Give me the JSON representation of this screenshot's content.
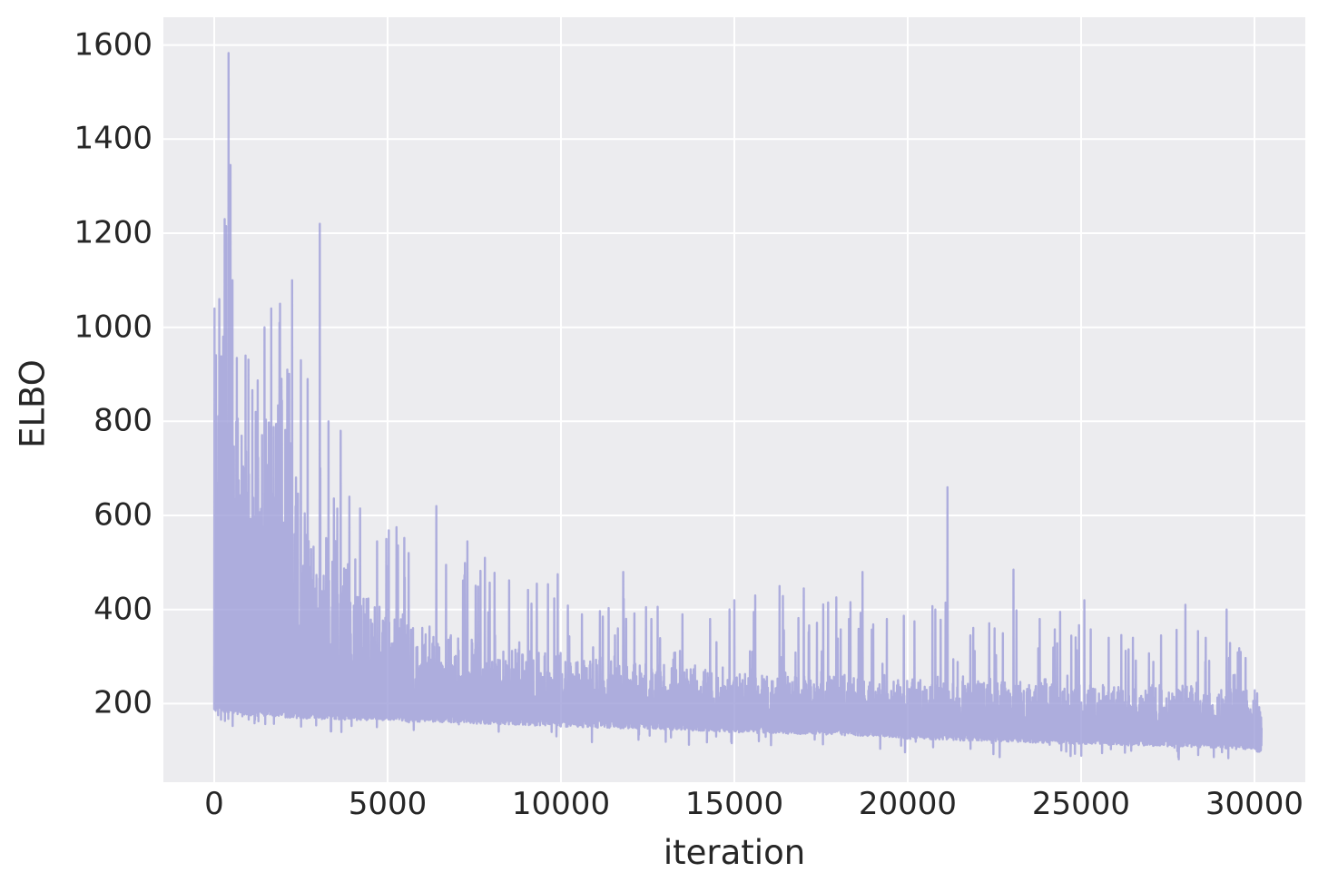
{
  "chart_data": {
    "type": "line",
    "title": "",
    "xlabel": "iteration",
    "ylabel": "ELBO",
    "legend": false,
    "grid": true,
    "x_ticks": [
      0,
      5000,
      10000,
      15000,
      20000,
      25000,
      30000
    ],
    "y_ticks": [
      200,
      400,
      600,
      800,
      1000,
      1200,
      1400,
      1600
    ],
    "xlim": [
      -1466,
      31466
    ],
    "ylim": [
      33,
      1659
    ],
    "x_start": 0,
    "x_end": 30200,
    "sample_step": 14,
    "noise_seed": 20240613,
    "style": {
      "figure_background": "#ffffff",
      "axes_background": "#ececef",
      "grid_color": "#ffffff",
      "line_color": "#9e9ed8",
      "line_opacity": 0.8,
      "line_width": 2.4,
      "text_color": "#262626"
    },
    "description": "Noisy stochastic-optimization ELBO trace: values oscillate in a dense band whose lower edge decays from ~195 at iteration 0 to ~110 at iteration 30000, with a spike envelope decaying from ~1050 (max spike 1583 near iteration 410) to ~300-450 late in training.",
    "envelope_points_format": [
      "iteration",
      "band_low",
      "band_top",
      "spike_max"
    ],
    "envelope_points": [
      [
        0,
        195,
        1000,
        1150
      ],
      [
        300,
        192,
        980,
        1250
      ],
      [
        700,
        188,
        830,
        1000
      ],
      [
        1000,
        186,
        720,
        950
      ],
      [
        1400,
        184,
        800,
        1000
      ],
      [
        2000,
        182,
        840,
        1060
      ],
      [
        2400,
        180,
        690,
        900
      ],
      [
        2800,
        179,
        520,
        720
      ],
      [
        3200,
        178,
        545,
        780
      ],
      [
        3700,
        177,
        490,
        680
      ],
      [
        4200,
        176,
        430,
        620
      ],
      [
        5000,
        174,
        385,
        580
      ],
      [
        6000,
        172,
        350,
        560
      ],
      [
        7000,
        170,
        330,
        520
      ],
      [
        8000,
        167,
        310,
        480
      ],
      [
        9000,
        165,
        300,
        470
      ],
      [
        10000,
        162,
        290,
        460
      ],
      [
        11000,
        160,
        282,
        420
      ],
      [
        12000,
        158,
        275,
        440
      ],
      [
        13000,
        156,
        266,
        400
      ],
      [
        14000,
        153,
        260,
        400
      ],
      [
        15000,
        150,
        256,
        410
      ],
      [
        16000,
        148,
        254,
        430
      ],
      [
        17000,
        146,
        250,
        430
      ],
      [
        18000,
        144,
        248,
        440
      ],
      [
        19000,
        142,
        246,
        390
      ],
      [
        20000,
        136,
        242,
        390
      ],
      [
        21000,
        134,
        240,
        420
      ],
      [
        22000,
        131,
        238,
        360
      ],
      [
        23000,
        129,
        236,
        420
      ],
      [
        24000,
        127,
        234,
        380
      ],
      [
        25000,
        125,
        232,
        400
      ],
      [
        26000,
        123,
        230,
        350
      ],
      [
        27000,
        121,
        228,
        340
      ],
      [
        28000,
        119,
        226,
        380
      ],
      [
        29000,
        116,
        224,
        380
      ],
      [
        29800,
        113,
        222,
        300
      ],
      [
        30200,
        107,
        190,
        220
      ]
    ],
    "notable_spikes_format": [
      "iteration",
      "value"
    ],
    "notable_spikes": [
      [
        0,
        1040
      ],
      [
        150,
        1060
      ],
      [
        340,
        1215
      ],
      [
        410,
        1583
      ],
      [
        470,
        1345
      ],
      [
        520,
        1100
      ],
      [
        650,
        935
      ],
      [
        900,
        940
      ],
      [
        1200,
        820
      ],
      [
        1450,
        1000
      ],
      [
        1650,
        1040
      ],
      [
        1900,
        1050
      ],
      [
        2100,
        910
      ],
      [
        2250,
        1100
      ],
      [
        2500,
        930
      ],
      [
        2700,
        890
      ],
      [
        3050,
        1220
      ],
      [
        3300,
        800
      ],
      [
        3650,
        780
      ],
      [
        3900,
        640
      ],
      [
        4200,
        615
      ],
      [
        4700,
        545
      ],
      [
        5250,
        575
      ],
      [
        5600,
        520
      ],
      [
        6400,
        620
      ],
      [
        7300,
        545
      ],
      [
        7800,
        510
      ],
      [
        8500,
        462
      ],
      [
        9300,
        455
      ],
      [
        9900,
        475
      ],
      [
        10600,
        390
      ],
      [
        11200,
        385
      ],
      [
        11800,
        480
      ],
      [
        12600,
        380
      ],
      [
        13500,
        390
      ],
      [
        14300,
        380
      ],
      [
        15000,
        420
      ],
      [
        15600,
        430
      ],
      [
        16300,
        450
      ],
      [
        17000,
        445
      ],
      [
        17700,
        415
      ],
      [
        18300,
        380
      ],
      [
        18700,
        480
      ],
      [
        19400,
        380
      ],
      [
        20200,
        375
      ],
      [
        20800,
        400
      ],
      [
        21150,
        660
      ],
      [
        21800,
        345
      ],
      [
        22500,
        360
      ],
      [
        23050,
        485
      ],
      [
        23800,
        380
      ],
      [
        24400,
        395
      ],
      [
        25100,
        420
      ],
      [
        25800,
        340
      ],
      [
        26500,
        340
      ],
      [
        27300,
        345
      ],
      [
        28000,
        410
      ],
      [
        28600,
        340
      ],
      [
        29200,
        400
      ],
      [
        29600,
        310
      ]
    ]
  }
}
